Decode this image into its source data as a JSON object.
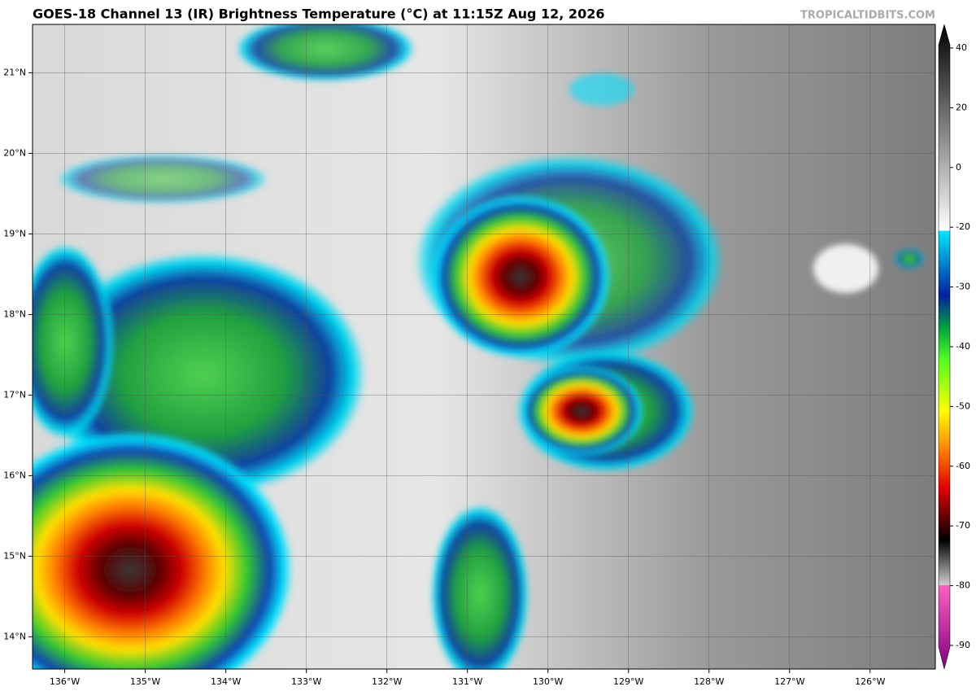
{
  "header": {
    "title": "GOES-18 Channel 13 (IR) Brightness Temperature (°C) at 11:15Z Aug 12, 2026",
    "credit": "TROPICALTIDBITS.COM"
  },
  "map": {
    "xlim": [
      -136.4,
      -125.19
    ],
    "ylim": [
      13.6,
      21.6
    ],
    "xticks": [
      {
        "value": -136,
        "label": "136°W"
      },
      {
        "value": -135,
        "label": "135°W"
      },
      {
        "value": -134,
        "label": "134°W"
      },
      {
        "value": -133,
        "label": "133°W"
      },
      {
        "value": -132,
        "label": "132°W"
      },
      {
        "value": -131,
        "label": "131°W"
      },
      {
        "value": -130,
        "label": "130°W"
      },
      {
        "value": -129,
        "label": "129°W"
      },
      {
        "value": -128,
        "label": "128°W"
      },
      {
        "value": -127,
        "label": "127°W"
      },
      {
        "value": -126,
        "label": "126°W"
      }
    ],
    "yticks": [
      {
        "value": 14,
        "label": "14°N"
      },
      {
        "value": 15,
        "label": "15°N"
      },
      {
        "value": 16,
        "label": "16°N"
      },
      {
        "value": 17,
        "label": "17°N"
      },
      {
        "value": 18,
        "label": "18°N"
      },
      {
        "value": 19,
        "label": "19°N"
      },
      {
        "value": 20,
        "label": "20°N"
      },
      {
        "value": 21,
        "label": "21°N"
      }
    ]
  },
  "colorbar": {
    "ticks": [
      40,
      20,
      0,
      -20,
      -30,
      -40,
      -50,
      -60,
      -70,
      -80,
      -90
    ]
  }
}
